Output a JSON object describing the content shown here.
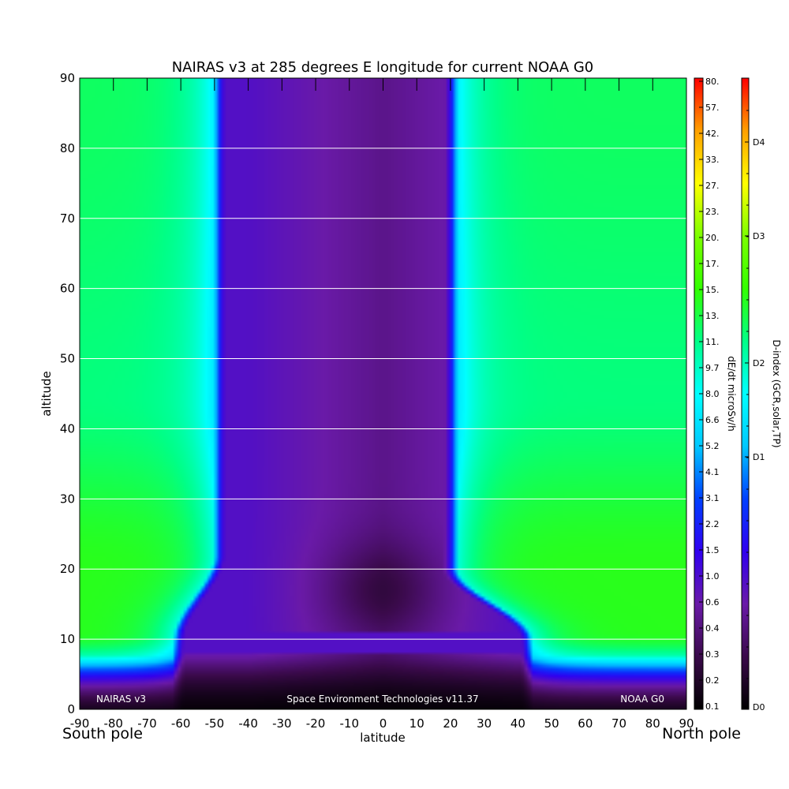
{
  "chart_data": {
    "type": "heatmap",
    "title": "NAIRAS v3 at 285 degrees E longitude for current NOAA G0",
    "xlabel": "latitude",
    "ylabel": "altitude",
    "xlim": [
      -90,
      90
    ],
    "ylim": [
      0,
      90
    ],
    "x_ticks": [
      "-90",
      "-80",
      "-70",
      "-60",
      "-50",
      "-40",
      "-30",
      "-20",
      "-10",
      "0",
      "10",
      "20",
      "30",
      "40",
      "50",
      "60",
      "70",
      "80",
      "90"
    ],
    "y_ticks": [
      "0",
      "10",
      "20",
      "30",
      "40",
      "50",
      "60",
      "70",
      "80",
      "90"
    ],
    "grid_y": true,
    "pole_labels": {
      "south": "South pole",
      "north": "North pole"
    },
    "footer": {
      "left": "NAIRAS v3",
      "center": "Space Environment Technologies v11.37",
      "right": "NOAA G0"
    },
    "colorbar_dose": {
      "label": "dE/dt microSv/h",
      "ticks": [
        "80.",
        "57.",
        "42.",
        "33.",
        "27.",
        "23.",
        "20.",
        "17.",
        "15.",
        "13.",
        "11.",
        "9.7",
        "8.0",
        "6.6",
        "5.2",
        "4.1",
        "3.1",
        "2.2",
        "1.5",
        "1.0",
        "0.6",
        "0.4",
        "0.3",
        "0.2",
        "0.1"
      ]
    },
    "colorbar_dindex": {
      "label": "D-index (GCR,solar,TP)",
      "ticks": [
        "D4",
        "D3",
        "D2",
        "D1",
        "D0"
      ]
    },
    "colors": {
      "ramp": [
        "#000000",
        "#3a0a4a",
        "#6a1aa8",
        "#3000f0",
        "#0040ff",
        "#00c8ff",
        "#00ffff",
        "#00ff88",
        "#33ff00",
        "#7dff00",
        "#ffff00",
        "#ffa000",
        "#ff0000"
      ]
    }
  }
}
